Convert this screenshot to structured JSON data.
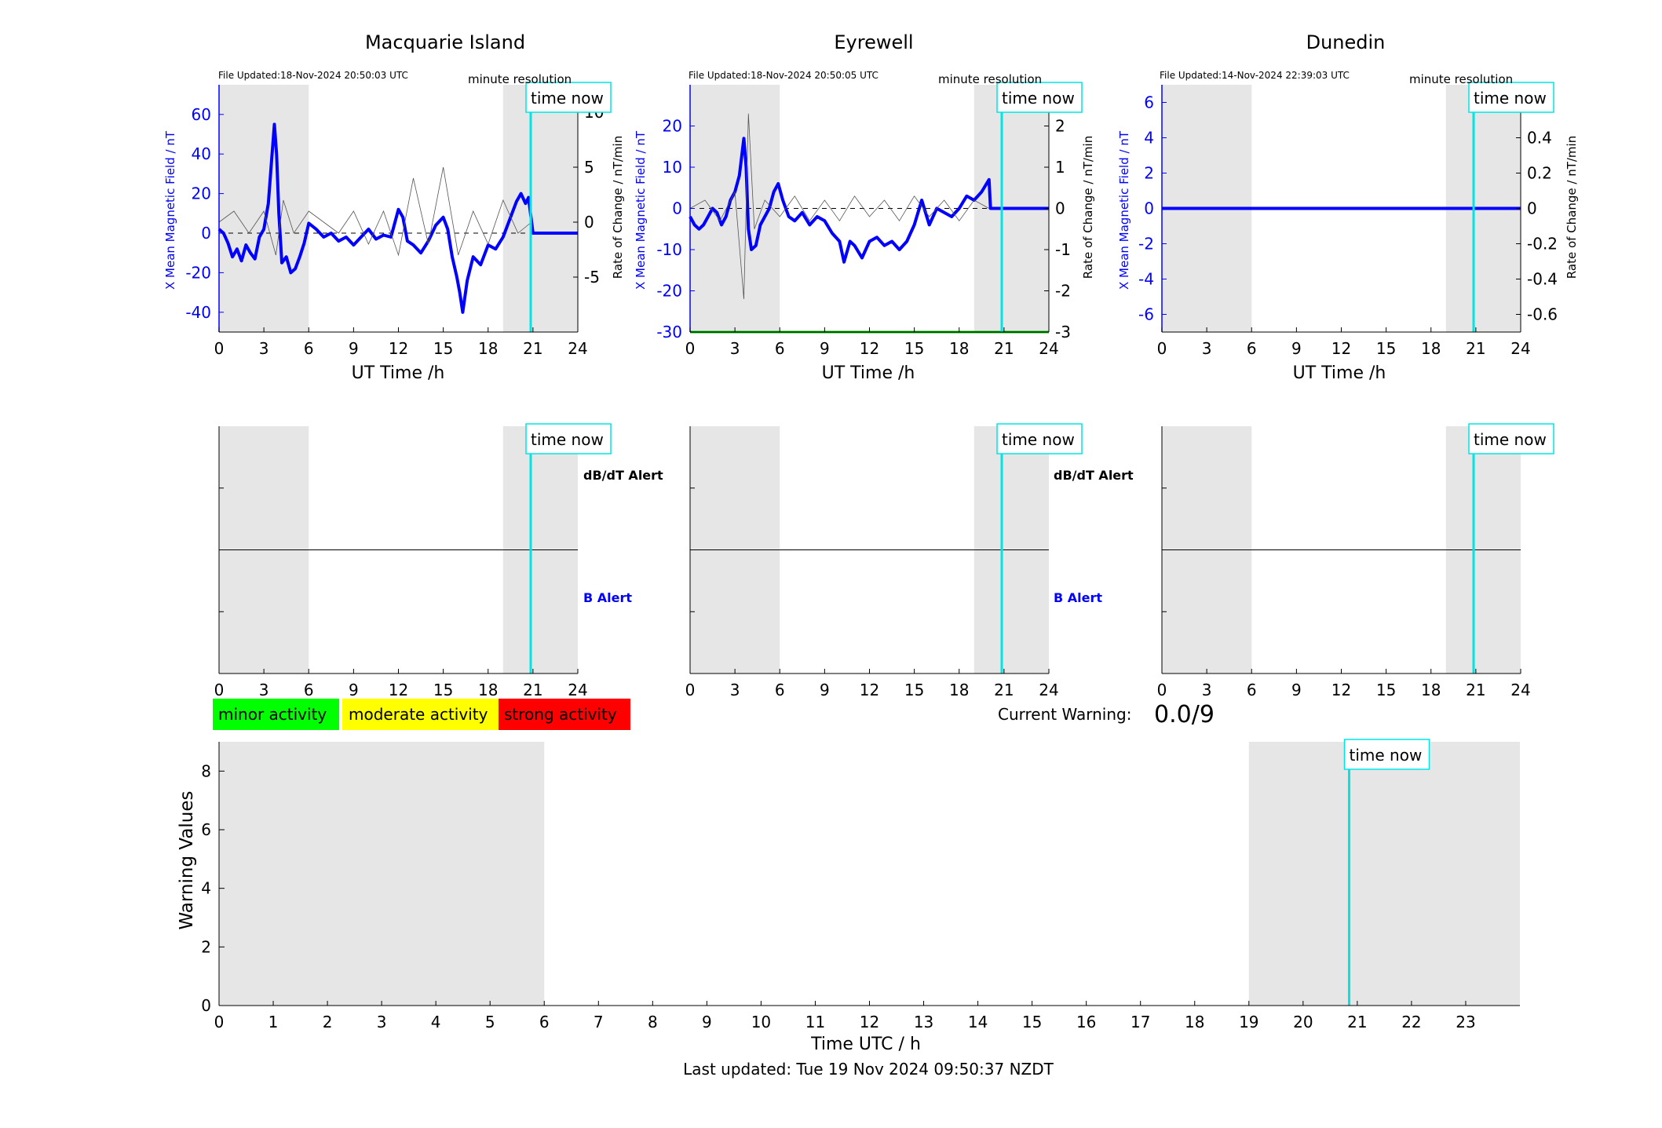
{
  "colors": {
    "field_line": "#0000ff",
    "rate_line": "#555555",
    "time_now": "#00e5e5",
    "shade": "#e6e6e6",
    "zero_line": "#000000",
    "green": "#00ff00",
    "yellow": "#ffff00",
    "red": "#ff0000",
    "green_line": "#00bb00"
  },
  "top_panels": [
    {
      "title": "Macquarie Island",
      "file_updated": "File Updated:18-Nov-2024 20:50:03 UTC",
      "resolution": "minute resolution",
      "time_now_label": "time now",
      "left_ylabel": "X Mean Magnetic Field / nT",
      "right_ylabel": "Rate of Change / nT/min",
      "xlabel": "UT Time /h",
      "left_ticks": [
        "-40",
        "-20",
        "0",
        "20",
        "40",
        "60"
      ],
      "right_ticks": [
        "-5",
        "0",
        "5",
        "10"
      ],
      "x_ticks": [
        "0",
        "3",
        "6",
        "9",
        "12",
        "15",
        "18",
        "21",
        "24"
      ]
    },
    {
      "title": "Eyrewell",
      "file_updated": "File Updated:18-Nov-2024 20:50:05 UTC",
      "resolution": "minute resolution",
      "time_now_label": "time now",
      "left_ylabel": "X Mean Magnetic Field / nT",
      "right_ylabel": "Rate of Change / nT/min",
      "xlabel": "UT Time /h",
      "left_ticks": [
        "-30",
        "-20",
        "-10",
        "0",
        "10",
        "20"
      ],
      "right_ticks": [
        "-3",
        "-2",
        "-1",
        "0",
        "1",
        "2"
      ],
      "x_ticks": [
        "0",
        "3",
        "6",
        "9",
        "12",
        "15",
        "18",
        "21",
        "24"
      ]
    },
    {
      "title": "Dunedin",
      "file_updated": "File Updated:14-Nov-2024 22:39:03 UTC",
      "resolution": "minute resolution",
      "time_now_label": "time now",
      "left_ylabel": "X Mean Magnetic Field / nT",
      "right_ylabel": "Rate of Change / nT/min",
      "xlabel": "UT Time /h",
      "left_ticks": [
        "-6",
        "-4",
        "-2",
        "0",
        "2",
        "4",
        "6"
      ],
      "right_ticks": [
        "-0.6",
        "-0.4",
        "-0.2",
        "0",
        "0.2",
        "0.4",
        "0.6"
      ],
      "x_ticks": [
        "0",
        "3",
        "6",
        "9",
        "12",
        "15",
        "18",
        "21",
        "24"
      ]
    }
  ],
  "alert_panels": [
    {
      "time_now_label": "time now",
      "dbdt_label": "dB/dT Alert",
      "b_label": "B Alert",
      "x_ticks": [
        "0",
        "3",
        "6",
        "9",
        "12",
        "15",
        "18",
        "21",
        "24"
      ]
    },
    {
      "time_now_label": "time now",
      "dbdt_label": "dB/dT Alert",
      "b_label": "B Alert",
      "x_ticks": [
        "0",
        "3",
        "6",
        "9",
        "12",
        "15",
        "18",
        "21",
        "24"
      ]
    },
    {
      "time_now_label": "time now",
      "dbdt_label": "",
      "b_label": "",
      "x_ticks": [
        "0",
        "3",
        "6",
        "9",
        "12",
        "15",
        "18",
        "21",
        "24"
      ]
    }
  ],
  "legend": {
    "minor": "minor activity",
    "moderate": "moderate activity",
    "strong": "strong activity"
  },
  "current_warning": {
    "label": "Current Warning:",
    "value": "0.0/9"
  },
  "warning_panel": {
    "time_now_label": "time now",
    "ylabel": "Warning Values",
    "xlabel": "Time UTC / h",
    "y_ticks": [
      "0",
      "2",
      "4",
      "6",
      "8"
    ],
    "x_ticks": [
      "0",
      "1",
      "2",
      "3",
      "4",
      "5",
      "6",
      "7",
      "8",
      "9",
      "10",
      "11",
      "12",
      "13",
      "14",
      "15",
      "16",
      "17",
      "18",
      "19",
      "20",
      "21",
      "22",
      "23"
    ]
  },
  "last_updated": "Last updated: Tue 19 Nov 2024 09:50:37 NZDT",
  "chart_data": [
    {
      "type": "line",
      "title": "Macquarie Island",
      "xlabel": "UT Time /h",
      "ylabel": "X Mean Magnetic Field / nT",
      "y2label": "Rate of Change / nT/min",
      "xlim": [
        0,
        24
      ],
      "ylim": [
        -50,
        75
      ],
      "y2lim": [
        -10,
        12.5
      ],
      "night_shading_hours": [
        [
          0,
          6
        ],
        [
          19,
          24
        ]
      ],
      "time_now": 20.85,
      "series": [
        {
          "axis": "left",
          "x": [
            0,
            0.3,
            0.6,
            0.9,
            1.2,
            1.5,
            1.8,
            2.1,
            2.4,
            2.7,
            3.0,
            3.3,
            3.5,
            3.7,
            3.85,
            4.0,
            4.2,
            4.5,
            4.8,
            5.1,
            5.4,
            5.7,
            6.0,
            6.5,
            7.0,
            7.5,
            8.0,
            8.5,
            9.0,
            9.5,
            10.0,
            10.5,
            11.0,
            11.5,
            12.0,
            12.3,
            12.6,
            13.0,
            13.5,
            14.0,
            14.5,
            15.0,
            15.3,
            15.6,
            15.9,
            16.1,
            16.3,
            16.6,
            17.0,
            17.5,
            18.0,
            18.5,
            19.0,
            19.3,
            19.6,
            19.9,
            20.2,
            20.5,
            20.7,
            21,
            22,
            23,
            24
          ],
          "y": [
            2,
            0,
            -5,
            -12,
            -8,
            -14,
            -6,
            -10,
            -13,
            -2,
            2,
            15,
            35,
            55,
            40,
            10,
            -15,
            -12,
            -20,
            -18,
            -12,
            -5,
            5,
            2,
            -2,
            0,
            -4,
            -2,
            -6,
            -2,
            2,
            -3,
            -1,
            -2,
            12,
            8,
            -4,
            -6,
            -10,
            -4,
            4,
            8,
            2,
            -12,
            -22,
            -30,
            -40,
            -24,
            -12,
            -16,
            -6,
            -8,
            -2,
            4,
            10,
            16,
            20,
            15,
            18,
            0,
            0,
            0,
            0
          ]
        },
        {
          "axis": "right",
          "x": [
            0,
            1,
            2,
            3,
            3.8,
            4.3,
            5,
            6,
            7,
            8,
            9,
            10,
            11,
            12,
            13,
            14,
            15,
            16,
            17,
            18,
            19,
            20,
            20.9
          ],
          "y": [
            0,
            1,
            -1,
            1,
            -3,
            2,
            -1,
            1,
            0,
            -1,
            1,
            -2,
            1,
            -3,
            4,
            -2,
            5,
            -3,
            1,
            -2,
            2,
            -1,
            0
          ]
        }
      ]
    },
    {
      "type": "line",
      "title": "Eyrewell",
      "xlabel": "UT Time /h",
      "ylabel": "X Mean Magnetic Field / nT",
      "y2label": "Rate of Change / nT/min",
      "xlim": [
        0,
        24
      ],
      "ylim": [
        -30,
        30
      ],
      "y2lim": [
        -3,
        3
      ],
      "night_shading_hours": [
        [
          0,
          6
        ],
        [
          19,
          24
        ]
      ],
      "time_now": 20.85,
      "series": [
        {
          "axis": "left",
          "x": [
            0,
            0.3,
            0.6,
            0.9,
            1.2,
            1.5,
            1.8,
            2.1,
            2.4,
            2.7,
            3.0,
            3.3,
            3.6,
            3.75,
            3.9,
            4.1,
            4.4,
            4.7,
            5.0,
            5.3,
            5.6,
            5.9,
            6.2,
            6.6,
            7.0,
            7.5,
            8.0,
            8.5,
            9.0,
            9.5,
            10.0,
            10.3,
            10.7,
            11.0,
            11.5,
            12.0,
            12.5,
            13.0,
            13.5,
            14.0,
            14.5,
            15.0,
            15.5,
            16.0,
            16.5,
            17.0,
            17.5,
            18.0,
            18.5,
            19.0,
            19.5,
            20.0,
            20.1,
            21,
            22,
            23,
            24
          ],
          "y": [
            -2,
            -4,
            -5,
            -4,
            -2,
            0,
            -1,
            -4,
            -2,
            2,
            4,
            8,
            17,
            10,
            -5,
            -10,
            -9,
            -4,
            -2,
            0,
            4,
            6,
            2,
            -2,
            -3,
            -1,
            -4,
            -2,
            -3,
            -6,
            -8,
            -13,
            -8,
            -9,
            -12,
            -8,
            -7,
            -9,
            -8,
            -10,
            -8,
            -4,
            2,
            -4,
            0,
            -1,
            -2,
            0,
            3,
            2,
            4,
            7,
            0,
            0,
            0,
            0,
            0
          ]
        },
        {
          "axis": "right",
          "x": [
            0,
            1,
            2,
            3,
            3.6,
            3.9,
            4.3,
            5,
            6,
            7,
            8,
            9,
            10,
            11,
            12,
            13,
            14,
            15,
            16,
            17,
            18,
            19,
            20
          ],
          "y": [
            0,
            0.2,
            -0.3,
            0.4,
            -2.2,
            2.3,
            -0.5,
            0.2,
            -0.2,
            0.3,
            -0.3,
            0.2,
            -0.3,
            0.3,
            -0.2,
            0.2,
            -0.3,
            0.3,
            -0.2,
            0.2,
            -0.3,
            0.2,
            0
          ]
        }
      ]
    },
    {
      "type": "line",
      "title": "Dunedin",
      "xlabel": "UT Time /h",
      "ylabel": "X Mean Magnetic Field / nT",
      "y2label": "Rate of Change / nT/min",
      "xlim": [
        0,
        24
      ],
      "ylim": [
        -7,
        7
      ],
      "y2lim": [
        -0.7,
        0.7
      ],
      "night_shading_hours": [
        [
          0,
          6
        ],
        [
          19,
          24
        ]
      ],
      "time_now": 20.85,
      "series": [
        {
          "axis": "left",
          "x": [
            0,
            24
          ],
          "y": [
            0,
            0
          ]
        }
      ]
    },
    {
      "type": "line",
      "title": "",
      "xlabel": "Time UTC / h",
      "ylabel": "Warning Values",
      "xlim": [
        0,
        24
      ],
      "ylim": [
        0,
        9
      ],
      "night_shading_hours": [
        [
          0,
          6
        ],
        [
          19,
          24
        ]
      ],
      "time_now": 20.85,
      "current_warning": 0.0
    }
  ]
}
